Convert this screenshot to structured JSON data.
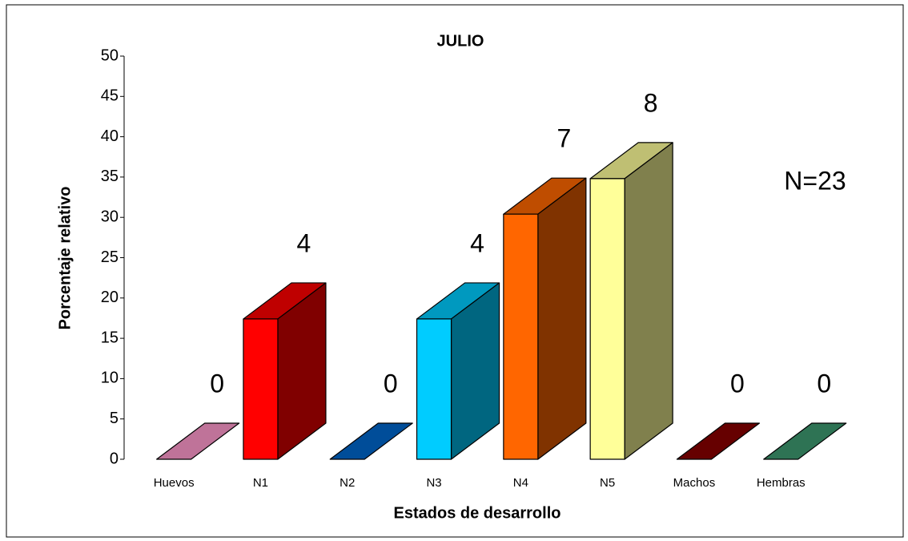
{
  "chart_data": {
    "type": "bar3d",
    "title": "JULIO",
    "x_label": "Estados de desarrollo",
    "y_label": "Porcentaje relativo",
    "annotation": "N=23",
    "categories": [
      "Huevos",
      "N1",
      "N2",
      "N3",
      "N4",
      "N5",
      "Machos",
      "Hembras"
    ],
    "values": [
      0,
      17.4,
      0,
      17.4,
      30.4,
      34.8,
      0,
      0
    ],
    "counts": [
      0,
      4,
      0,
      4,
      7,
      8,
      0,
      0
    ],
    "colors": [
      "#ff99cc",
      "#ff0000",
      "#0066cc",
      "#00ccff",
      "#ff6600",
      "#ffff99",
      "#880000",
      "#3d9970"
    ],
    "ylim": [
      0,
      50
    ],
    "yticks": [
      0,
      5,
      10,
      15,
      20,
      25,
      30,
      35,
      40,
      45,
      50
    ]
  }
}
